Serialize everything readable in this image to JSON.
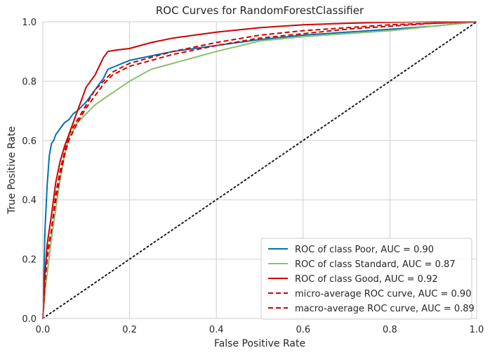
{
  "chart_data": {
    "type": "line",
    "title": "ROC Curves for RandomForestClassifier",
    "xlabel": "False Positive Rate",
    "ylabel": "True Positive Rate",
    "xlim": [
      0,
      1
    ],
    "ylim": [
      0,
      1
    ],
    "xticks": [
      "0.0",
      "0.2",
      "0.4",
      "0.6",
      "0.8",
      "1.0"
    ],
    "yticks": [
      "0.0",
      "0.2",
      "0.4",
      "0.6",
      "0.8",
      "1.0"
    ],
    "grid": true,
    "legend_position": "lower-right",
    "series": [
      {
        "name": "ROC of class Poor, AUC = 0.90",
        "color": "#0072b2",
        "style": "solid",
        "x": [
          0,
          0.005,
          0.01,
          0.015,
          0.02,
          0.025,
          0.03,
          0.04,
          0.05,
          0.06,
          0.07,
          0.08,
          0.1,
          0.12,
          0.14,
          0.15,
          0.2,
          0.25,
          0.3,
          0.4,
          0.5,
          0.6,
          0.7,
          0.8,
          0.9,
          1.0
        ],
        "y": [
          0,
          0.3,
          0.45,
          0.55,
          0.59,
          0.6,
          0.62,
          0.64,
          0.66,
          0.67,
          0.69,
          0.7,
          0.73,
          0.77,
          0.81,
          0.84,
          0.87,
          0.885,
          0.9,
          0.92,
          0.94,
          0.955,
          0.965,
          0.975,
          0.985,
          1.0
        ]
      },
      {
        "name": "ROC of class Standard, AUC = 0.87",
        "color": "#8cc16a",
        "style": "solid",
        "x": [
          0,
          0.005,
          0.01,
          0.02,
          0.03,
          0.04,
          0.05,
          0.06,
          0.08,
          0.1,
          0.12,
          0.15,
          0.2,
          0.25,
          0.3,
          0.35,
          0.4,
          0.5,
          0.6,
          0.7,
          0.8,
          0.9,
          1.0
        ],
        "y": [
          0,
          0.09,
          0.15,
          0.27,
          0.37,
          0.47,
          0.55,
          0.61,
          0.66,
          0.69,
          0.72,
          0.75,
          0.8,
          0.84,
          0.86,
          0.88,
          0.9,
          0.935,
          0.95,
          0.96,
          0.97,
          0.985,
          1.0
        ]
      },
      {
        "name": "ROC of class Good, AUC = 0.92",
        "color": "#d00000",
        "style": "solid",
        "x": [
          0,
          0.005,
          0.01,
          0.02,
          0.03,
          0.04,
          0.05,
          0.06,
          0.08,
          0.1,
          0.11,
          0.12,
          0.13,
          0.14,
          0.15,
          0.17,
          0.2,
          0.25,
          0.3,
          0.4,
          0.5,
          0.6,
          0.7,
          0.8,
          0.9,
          1.0
        ],
        "y": [
          0,
          0.15,
          0.25,
          0.35,
          0.46,
          0.53,
          0.58,
          0.62,
          0.7,
          0.78,
          0.8,
          0.82,
          0.85,
          0.88,
          0.9,
          0.905,
          0.91,
          0.93,
          0.945,
          0.965,
          0.98,
          0.99,
          0.995,
          0.998,
          1.0,
          1.0
        ]
      },
      {
        "name": "micro-average ROC curve, AUC = 0.90",
        "color": "#d00000",
        "style": "dashed",
        "x": [
          0,
          0.005,
          0.01,
          0.02,
          0.03,
          0.04,
          0.05,
          0.06,
          0.08,
          0.1,
          0.12,
          0.14,
          0.16,
          0.2,
          0.25,
          0.3,
          0.4,
          0.5,
          0.6,
          0.7,
          0.8,
          0.9,
          1.0
        ],
        "y": [
          0,
          0.15,
          0.22,
          0.3,
          0.42,
          0.5,
          0.56,
          0.62,
          0.67,
          0.72,
          0.77,
          0.8,
          0.83,
          0.86,
          0.88,
          0.9,
          0.93,
          0.955,
          0.97,
          0.98,
          0.99,
          0.995,
          1.0
        ]
      },
      {
        "name": "macro-average ROC curve, AUC = 0.89",
        "color": "#d00000",
        "style": "dashed",
        "x": [
          0,
          0.005,
          0.01,
          0.02,
          0.03,
          0.04,
          0.05,
          0.06,
          0.08,
          0.1,
          0.12,
          0.14,
          0.16,
          0.2,
          0.25,
          0.3,
          0.4,
          0.5,
          0.6,
          0.7,
          0.8,
          0.9,
          1.0
        ],
        "y": [
          0,
          0.12,
          0.2,
          0.3,
          0.4,
          0.48,
          0.55,
          0.6,
          0.66,
          0.71,
          0.75,
          0.79,
          0.82,
          0.85,
          0.87,
          0.89,
          0.92,
          0.945,
          0.96,
          0.975,
          0.985,
          0.995,
          1.0
        ]
      },
      {
        "name": "",
        "color": "#1a1a1a",
        "style": "dotted",
        "x": [
          0,
          1
        ],
        "y": [
          0,
          1
        ]
      }
    ]
  }
}
